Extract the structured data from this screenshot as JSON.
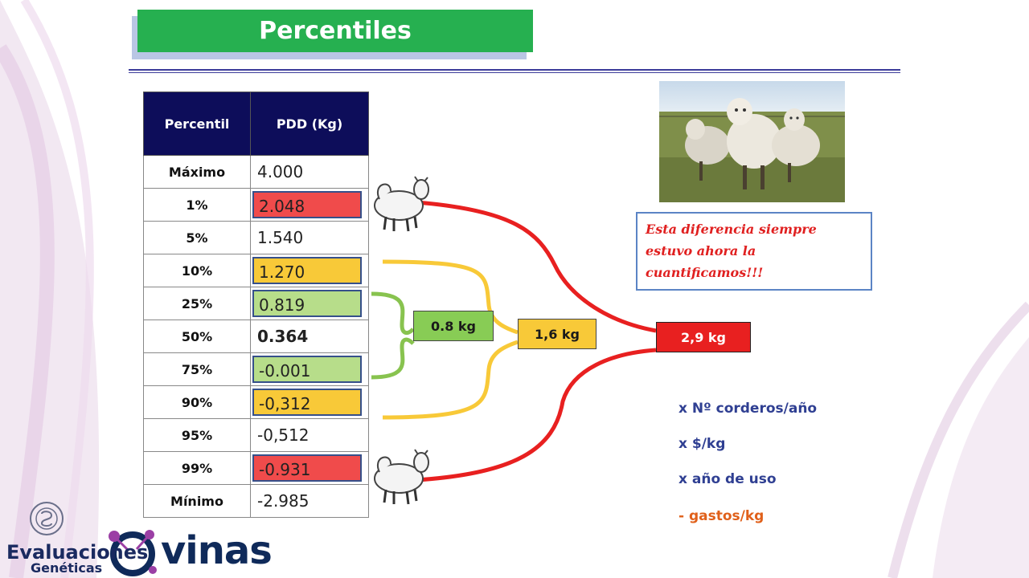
{
  "title": "Percentiles",
  "table": {
    "headers": [
      "Percentil",
      "PDD (Kg)"
    ],
    "rows": [
      {
        "label": "Máximo",
        "value": "4.000"
      },
      {
        "label": "1%",
        "value": "2.048"
      },
      {
        "label": "5%",
        "value": "1.540"
      },
      {
        "label": "10%",
        "value": "1.270"
      },
      {
        "label": "25%",
        "value": "0.819"
      },
      {
        "label": "50%",
        "value": "0.364"
      },
      {
        "label": "75%",
        "value": "-0.001"
      },
      {
        "label": "90%",
        "value": "-0,312"
      },
      {
        "label": "95%",
        "value": "-0,512"
      },
      {
        "label": "99%",
        "value": "-0.931"
      },
      {
        "label": "Mínimo",
        "value": "-2.985"
      }
    ]
  },
  "brackets": {
    "green_label": "0.8 kg",
    "yellow_label": "1,6 kg",
    "red_label": "2,9 kg"
  },
  "note": "Esta diferencia siempre estuvo ahora  la cuantificamos!!!",
  "multipliers": [
    "x Nº corderos/año",
    "x $/kg",
    "x año de uso"
  ],
  "minus": "- gastos/kg",
  "logo": {
    "line1": "Evaluaciones",
    "line2": "Genéticas",
    "brand": "vinas"
  },
  "colors": {
    "title_green": "#26b050",
    "header_navy": "#0d0d5a",
    "red": "#e82020",
    "yellow": "#f8c938",
    "green": "#88cc55",
    "text_blue": "#2f3f92"
  }
}
